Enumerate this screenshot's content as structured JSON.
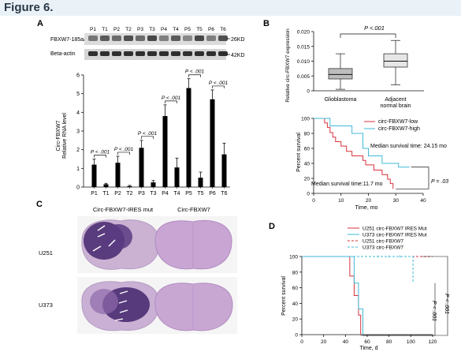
{
  "figure": {
    "title": "Figure 6."
  },
  "panels": {
    "a": "A",
    "b": "B",
    "c": "C",
    "d": "D"
  },
  "western": {
    "lanes": [
      "P1",
      "T1",
      "P2",
      "T2",
      "P3",
      "T3",
      "P4",
      "T4",
      "P5",
      "T5",
      "P6",
      "T6"
    ],
    "row1_label": "FBXW7-185aa",
    "row2_label": "Beta-actin",
    "row1_kd": "26KD",
    "row2_kd": "42KD"
  },
  "chart_a": {
    "type": "bar",
    "ylabel_line1": "Circ-FBXW7",
    "ylabel_line2": "Relative RNA level",
    "ylim": [
      0,
      6
    ],
    "yticks": [
      "0",
      "1",
      "2",
      "3",
      "4",
      "5",
      "6"
    ],
    "categories": [
      "P1",
      "T1",
      "P2",
      "T2",
      "P3",
      "T3",
      "P4",
      "T4",
      "P5",
      "T5",
      "P6",
      "T6"
    ],
    "values": [
      1.2,
      0.15,
      1.3,
      0.05,
      2.1,
      0.25,
      3.8,
      1.05,
      5.3,
      0.5,
      4.7,
      1.75
    ],
    "errors": [
      0.3,
      0.05,
      0.35,
      0.04,
      0.4,
      0.1,
      0.6,
      0.5,
      0.5,
      0.3,
      0.5,
      0.6
    ],
    "pvalues": [
      "P < .001",
      "P < .001",
      "P < .001",
      "P < .001",
      "P < .001",
      "P < .001"
    ]
  },
  "chart_b": {
    "type": "box",
    "ylabel": "Relative circ-FBXW7 expression",
    "ylim": [
      0,
      0.02
    ],
    "yticks": [
      "0",
      "0.005",
      "0.010",
      "0.015",
      "0.020"
    ],
    "pvalue": "P <.001",
    "categories": [
      "Glioblastoma",
      "Adjacent normal brain"
    ],
    "boxes": [
      {
        "min": 0.0005,
        "q1": 0.004,
        "median": 0.0055,
        "q3": 0.0075,
        "max": 0.0125
      },
      {
        "min": 0.002,
        "q1": 0.008,
        "median": 0.01,
        "q3": 0.0125,
        "max": 0.017
      }
    ]
  },
  "chart_km1": {
    "type": "line",
    "ylabel": "Percent survival",
    "xlabel": "Time, mo",
    "xlim": [
      0,
      40
    ],
    "ylim": [
      0,
      100
    ],
    "xticks": [
      "0",
      "10",
      "20",
      "30",
      "40"
    ],
    "yticks": [
      "0",
      "20",
      "40",
      "60",
      "80",
      "100"
    ],
    "series": [
      {
        "name": "circ-FBXW7-low",
        "color": "#d8323c",
        "x": [
          0,
          4,
          5,
          6,
          7,
          8,
          10,
          12,
          14,
          17,
          18,
          19,
          22,
          25,
          27,
          28,
          29
        ],
        "y": [
          100,
          94,
          88,
          81,
          75,
          69,
          63,
          56,
          50,
          50,
          44,
          38,
          31,
          25,
          19,
          13,
          6
        ]
      },
      {
        "name": "circ-FBXW7-high",
        "color": "#3fb8d8",
        "x": [
          0,
          5,
          6,
          13,
          14,
          18,
          20,
          25,
          31,
          34,
          35
        ],
        "y": [
          100,
          100,
          90,
          90,
          80,
          60,
          50,
          40,
          35,
          35,
          35
        ]
      }
    ],
    "annotations": [
      "Median survival time: 24.15 mo",
      "Median survival time:11.7 mo",
      "P = .03"
    ]
  },
  "panel_c": {
    "col1": "Circ-FBXW7-IRES mut",
    "col2": "Circ-FBXW7",
    "row1": "U251",
    "row2": "U373"
  },
  "chart_km2": {
    "type": "line",
    "ylabel": "Percent survival",
    "xlabel": "Time, d",
    "xlim": [
      0,
      120
    ],
    "ylim": [
      0,
      100
    ],
    "xticks": [
      "0",
      "20",
      "40",
      "60",
      "80",
      "100",
      "120"
    ],
    "yticks": [
      "0",
      "20",
      "40",
      "60",
      "80",
      "100"
    ],
    "series": [
      {
        "name": "U251 circ-FBXW7 IRES Mut",
        "color": "#d8323c",
        "dash": false
      },
      {
        "name": "U373 circ-FBXW7 IRES Mut",
        "color": "#3fb8d8",
        "dash": false
      },
      {
        "name": "U251 circ-FBXW7",
        "color": "#d8323c",
        "dash": true
      },
      {
        "name": "U373 circ-FBXW7",
        "color": "#3fb8d8",
        "dash": true
      }
    ],
    "annotations": [
      "P < .001",
      "P < .001"
    ]
  }
}
